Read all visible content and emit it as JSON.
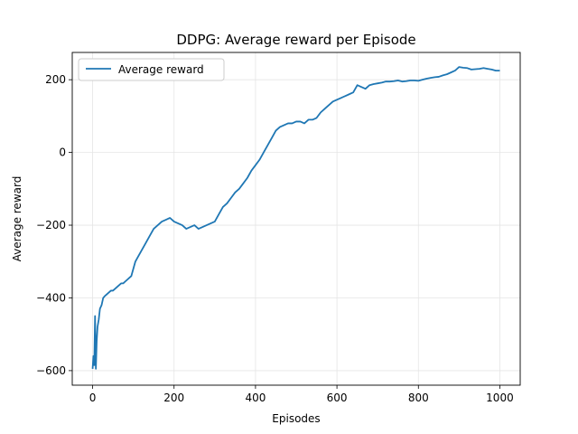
{
  "chart_data": {
    "type": "line",
    "title": "DDPG: Average reward per Episode",
    "xlabel": "Episodes",
    "ylabel": "Average reward",
    "xlim": [
      -50,
      1050
    ],
    "ylim": [
      -640,
      275
    ],
    "xticks": [
      0,
      200,
      400,
      600,
      800,
      1000
    ],
    "yticks": [
      -600,
      -400,
      -200,
      0,
      200
    ],
    "xtick_labels": [
      "0",
      "200",
      "400",
      "600",
      "800",
      "1000"
    ],
    "ytick_labels": [
      "−600",
      "−400",
      "−200",
      "0",
      "200"
    ],
    "grid": true,
    "legend_position": "upper-left",
    "colors": {
      "line": "#1f77b4",
      "grid": "#e5e5e5",
      "axis": "#000000"
    },
    "series": [
      {
        "name": "Average reward",
        "x": [
          0,
          2,
          4,
          6,
          8,
          10,
          12,
          15,
          18,
          22,
          26,
          30,
          35,
          40,
          45,
          50,
          55,
          60,
          65,
          70,
          75,
          80,
          85,
          90,
          95,
          100,
          105,
          110,
          115,
          120,
          130,
          140,
          150,
          160,
          170,
          180,
          190,
          200,
          210,
          220,
          230,
          240,
          250,
          260,
          270,
          280,
          290,
          300,
          310,
          320,
          330,
          340,
          350,
          360,
          370,
          380,
          390,
          400,
          410,
          420,
          430,
          440,
          450,
          460,
          470,
          480,
          490,
          500,
          510,
          520,
          530,
          540,
          550,
          560,
          570,
          580,
          590,
          600,
          610,
          620,
          630,
          640,
          650,
          660,
          670,
          680,
          690,
          700,
          710,
          720,
          730,
          740,
          750,
          760,
          770,
          780,
          790,
          800,
          810,
          820,
          830,
          840,
          850,
          860,
          870,
          880,
          890,
          900,
          910,
          920,
          930,
          940,
          950,
          960,
          970,
          980,
          990,
          1000
        ],
        "y": [
          -595,
          -560,
          -585,
          -450,
          -595,
          -520,
          -480,
          -460,
          -430,
          -420,
          -400,
          -395,
          -390,
          -385,
          -380,
          -380,
          -375,
          -370,
          -365,
          -360,
          -360,
          -355,
          -350,
          -345,
          -340,
          -320,
          -300,
          -290,
          -280,
          -270,
          -250,
          -230,
          -210,
          -200,
          -190,
          -185,
          -180,
          -190,
          -195,
          -200,
          -210,
          -205,
          -200,
          -210,
          -205,
          -200,
          -195,
          -190,
          -170,
          -150,
          -140,
          -125,
          -110,
          -100,
          -85,
          -70,
          -50,
          -35,
          -20,
          0,
          20,
          40,
          60,
          70,
          75,
          80,
          80,
          85,
          85,
          80,
          90,
          90,
          95,
          110,
          120,
          130,
          140,
          145,
          150,
          155,
          160,
          165,
          185,
          180,
          175,
          185,
          188,
          190,
          192,
          195,
          195,
          196,
          198,
          195,
          196,
          198,
          198,
          197,
          200,
          203,
          205,
          207,
          208,
          212,
          215,
          220,
          225,
          235,
          233,
          232,
          228,
          229,
          230,
          232,
          230,
          228,
          225,
          225
        ]
      }
    ]
  }
}
